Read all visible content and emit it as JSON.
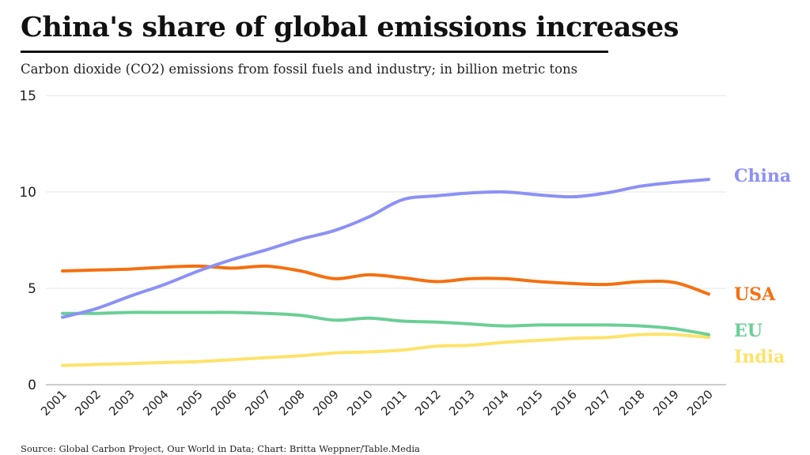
{
  "header": {
    "title": "China's share of global emissions increases",
    "subtitle": "Carbon dioxide (CO2) emissions from fossil fuels and industry; in billion metric tons"
  },
  "footer": {
    "source": "Source: Global Carbon Project, Our World in Data; Chart: Britta Weppner/Table.Media"
  },
  "chart_data": {
    "type": "line",
    "title": "China's share of global emissions increases",
    "subtitle": "Carbon dioxide (CO2) emissions from fossil fuels and industry; in billion metric tons",
    "xlabel": "",
    "ylabel": "",
    "ylim": [
      0,
      15
    ],
    "yticks": [
      0,
      5,
      10,
      15
    ],
    "grid": true,
    "legend": "direct labels at right end of lines",
    "x": [
      "2001",
      "2002",
      "2003",
      "2004",
      "2005",
      "2006",
      "2007",
      "2008",
      "2009",
      "2010",
      "2011",
      "2012",
      "2013",
      "2014",
      "2015",
      "2016",
      "2017",
      "2018",
      "2019",
      "2020"
    ],
    "series": [
      {
        "name": "China",
        "color": "#8c91f5",
        "values": [
          3.5,
          3.95,
          4.6,
          5.2,
          5.9,
          6.5,
          7.0,
          7.55,
          8.0,
          8.7,
          9.6,
          9.8,
          9.95,
          10.0,
          9.85,
          9.75,
          9.95,
          10.3,
          10.5,
          10.65
        ]
      },
      {
        "name": "USA",
        "color": "#f4700f",
        "values": [
          5.9,
          5.95,
          6.0,
          6.1,
          6.15,
          6.05,
          6.15,
          5.9,
          5.5,
          5.7,
          5.55,
          5.35,
          5.5,
          5.5,
          5.35,
          5.25,
          5.2,
          5.35,
          5.3,
          4.7
        ]
      },
      {
        "name": "EU",
        "color": "#6bcf96",
        "values": [
          3.7,
          3.7,
          3.75,
          3.75,
          3.75,
          3.75,
          3.7,
          3.6,
          3.35,
          3.45,
          3.3,
          3.25,
          3.15,
          3.05,
          3.1,
          3.1,
          3.1,
          3.05,
          2.9,
          2.6
        ]
      },
      {
        "name": "India",
        "color": "#fde36a",
        "values": [
          1.0,
          1.05,
          1.1,
          1.15,
          1.2,
          1.3,
          1.4,
          1.5,
          1.65,
          1.7,
          1.8,
          2.0,
          2.05,
          2.2,
          2.3,
          2.4,
          2.45,
          2.6,
          2.6,
          2.45
        ]
      }
    ]
  }
}
